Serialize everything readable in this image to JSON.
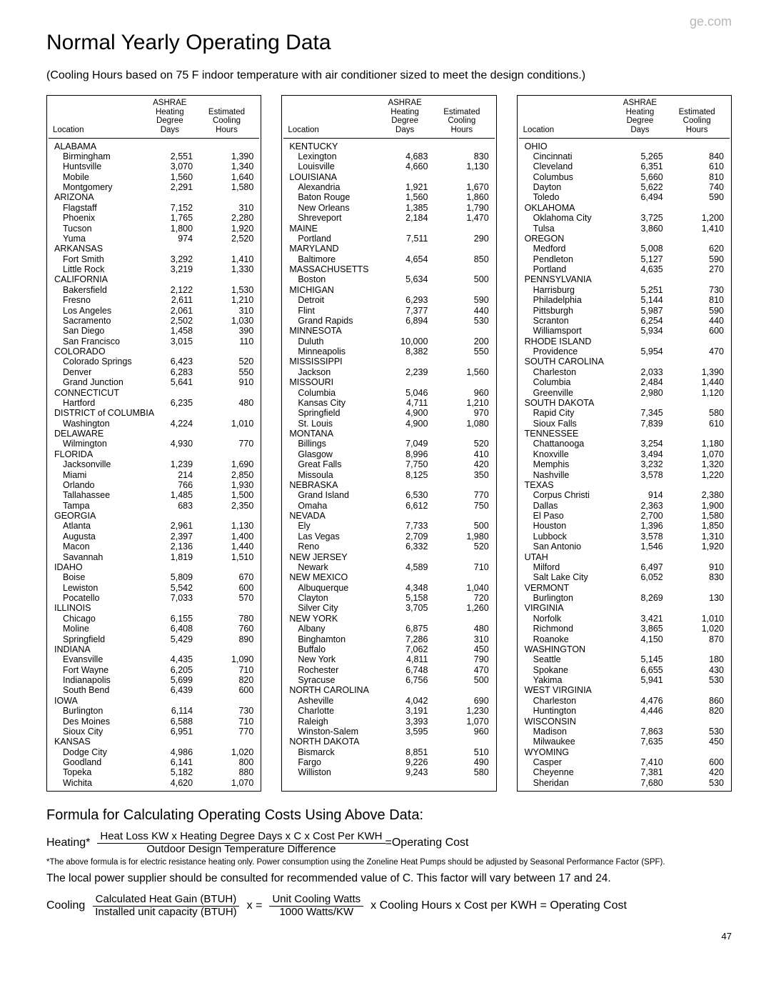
{
  "brand": "ge.com",
  "title": "Normal Yearly Operating Data",
  "subtitle": "(Cooling Hours based on 75 F indoor temperature with air conditioner sized to meet the design conditions.)",
  "headers": {
    "location": "Location",
    "hdd1": "ASHRAE",
    "hdd2": "Heating",
    "hdd3": "Degree",
    "hdd4": "Days",
    "ech1": "Estimated",
    "ech2": "Cooling",
    "ech3": "Hours"
  },
  "columns": [
    [
      {
        "t": "s",
        "n": "ALABAMA"
      },
      {
        "t": "r",
        "n": "Birmingham",
        "h": "2,551",
        "c": "1,390"
      },
      {
        "t": "r",
        "n": "Huntsville",
        "h": "3,070",
        "c": "1,340"
      },
      {
        "t": "r",
        "n": "Mobile",
        "h": "1,560",
        "c": "1,640"
      },
      {
        "t": "r",
        "n": "Montgomery",
        "h": "2,291",
        "c": "1,580"
      },
      {
        "t": "s",
        "n": "ARIZONA"
      },
      {
        "t": "r",
        "n": "Flagstaff",
        "h": "7,152",
        "c": "310"
      },
      {
        "t": "r",
        "n": "Phoenix",
        "h": "1,765",
        "c": "2,280"
      },
      {
        "t": "r",
        "n": "Tucson",
        "h": "1,800",
        "c": "1,920"
      },
      {
        "t": "r",
        "n": "Yuma",
        "h": "974",
        "c": "2,520"
      },
      {
        "t": "s",
        "n": "ARKANSAS"
      },
      {
        "t": "r",
        "n": "Fort Smith",
        "h": "3,292",
        "c": "1,410"
      },
      {
        "t": "r",
        "n": "Little Rock",
        "h": "3,219",
        "c": "1,330"
      },
      {
        "t": "s",
        "n": "CALIFORNIA"
      },
      {
        "t": "r",
        "n": "Bakersfield",
        "h": "2,122",
        "c": "1,530"
      },
      {
        "t": "r",
        "n": "Fresno",
        "h": "2,611",
        "c": "1,210"
      },
      {
        "t": "r",
        "n": "Los Angeles",
        "h": "2,061",
        "c": "310"
      },
      {
        "t": "r",
        "n": "Sacramento",
        "h": "2,502",
        "c": "1,030"
      },
      {
        "t": "r",
        "n": "San Diego",
        "h": "1,458",
        "c": "390"
      },
      {
        "t": "r",
        "n": "San Francisco",
        "h": "3,015",
        "c": "110"
      },
      {
        "t": "s",
        "n": "COLORADO"
      },
      {
        "t": "r",
        "n": "Colorado Springs",
        "h": "6,423",
        "c": "520"
      },
      {
        "t": "r",
        "n": "Denver",
        "h": "6,283",
        "c": "550"
      },
      {
        "t": "r",
        "n": "Grand Junction",
        "h": "5,641",
        "c": "910"
      },
      {
        "t": "s",
        "n": "CONNECTICUT"
      },
      {
        "t": "r",
        "n": "Hartford",
        "h": "6,235",
        "c": "480"
      },
      {
        "t": "s",
        "n": "DISTRICT of COLUMBIA"
      },
      {
        "t": "r",
        "n": "Washington",
        "h": "4,224",
        "c": "1,010"
      },
      {
        "t": "s",
        "n": "DELAWARE"
      },
      {
        "t": "r",
        "n": "Wilmington",
        "h": "4,930",
        "c": "770"
      },
      {
        "t": "s",
        "n": "FLORIDA"
      },
      {
        "t": "r",
        "n": "Jacksonville",
        "h": "1,239",
        "c": "1,690"
      },
      {
        "t": "r",
        "n": "Miami",
        "h": "214",
        "c": "2,850"
      },
      {
        "t": "r",
        "n": "Orlando",
        "h": "766",
        "c": "1,930"
      },
      {
        "t": "r",
        "n": "Tallahassee",
        "h": "1,485",
        "c": "1,500"
      },
      {
        "t": "r",
        "n": "Tampa",
        "h": "683",
        "c": "2,350"
      },
      {
        "t": "s",
        "n": "GEORGIA"
      },
      {
        "t": "r",
        "n": "Atlanta",
        "h": "2,961",
        "c": "1,130"
      },
      {
        "t": "r",
        "n": "Augusta",
        "h": "2,397",
        "c": "1,400"
      },
      {
        "t": "r",
        "n": "Macon",
        "h": "2,136",
        "c": "1,440"
      },
      {
        "t": "r",
        "n": "Savannah",
        "h": "1,819",
        "c": "1,510"
      },
      {
        "t": "s",
        "n": "IDAHO"
      },
      {
        "t": "r",
        "n": "Boise",
        "h": "5,809",
        "c": "670"
      },
      {
        "t": "r",
        "n": "Lewiston",
        "h": "5,542",
        "c": "600"
      },
      {
        "t": "r",
        "n": "Pocatello",
        "h": "7,033",
        "c": "570"
      },
      {
        "t": "s",
        "n": "ILLINOIS"
      },
      {
        "t": "r",
        "n": "Chicago",
        "h": "6,155",
        "c": "780"
      },
      {
        "t": "r",
        "n": "Moline",
        "h": "6,408",
        "c": "760"
      },
      {
        "t": "r",
        "n": "Springfield",
        "h": "5,429",
        "c": "890"
      },
      {
        "t": "s",
        "n": "INDIANA"
      },
      {
        "t": "r",
        "n": "Evansville",
        "h": "4,435",
        "c": "1,090"
      },
      {
        "t": "r",
        "n": "Fort Wayne",
        "h": "6,205",
        "c": "710"
      },
      {
        "t": "r",
        "n": "Indianapolis",
        "h": "5,699",
        "c": "820"
      },
      {
        "t": "r",
        "n": "South Bend",
        "h": "6,439",
        "c": "600"
      },
      {
        "t": "s",
        "n": "IOWA"
      },
      {
        "t": "r",
        "n": "Burlington",
        "h": "6,114",
        "c": "730"
      },
      {
        "t": "r",
        "n": "Des Moines",
        "h": "6,588",
        "c": "710"
      },
      {
        "t": "r",
        "n": "Sioux City",
        "h": "6,951",
        "c": "770"
      },
      {
        "t": "s",
        "n": "KANSAS"
      },
      {
        "t": "r",
        "n": "Dodge City",
        "h": "4,986",
        "c": "1,020"
      },
      {
        "t": "r",
        "n": "Goodland",
        "h": "6,141",
        "c": "800"
      },
      {
        "t": "r",
        "n": "Topeka",
        "h": "5,182",
        "c": "880"
      },
      {
        "t": "r",
        "n": "Wichita",
        "h": "4,620",
        "c": "1,070"
      }
    ],
    [
      {
        "t": "s",
        "n": "KENTUCKY"
      },
      {
        "t": "r",
        "n": "Lexington",
        "h": "4,683",
        "c": "830"
      },
      {
        "t": "r",
        "n": "Louisville",
        "h": "4,660",
        "c": "1,130"
      },
      {
        "t": "s",
        "n": "LOUISIANA"
      },
      {
        "t": "r",
        "n": "Alexandria",
        "h": "1,921",
        "c": "1,670"
      },
      {
        "t": "r",
        "n": "Baton Rouge",
        "h": "1,560",
        "c": "1,860"
      },
      {
        "t": "r",
        "n": "New Orleans",
        "h": "1,385",
        "c": "1,790"
      },
      {
        "t": "r",
        "n": "Shreveport",
        "h": "2,184",
        "c": "1,470"
      },
      {
        "t": "s",
        "n": "MAINE"
      },
      {
        "t": "r",
        "n": "Portland",
        "h": "7,511",
        "c": "290"
      },
      {
        "t": "s",
        "n": "MARYLAND"
      },
      {
        "t": "r",
        "n": "Baltimore",
        "h": "4,654",
        "c": "850"
      },
      {
        "t": "s",
        "n": "MASSACHUSETTS"
      },
      {
        "t": "r",
        "n": "Boston",
        "h": "5,634",
        "c": "500"
      },
      {
        "t": "s",
        "n": "MICHIGAN"
      },
      {
        "t": "r",
        "n": "Detroit",
        "h": "6,293",
        "c": "590"
      },
      {
        "t": "r",
        "n": "Flint",
        "h": "7,377",
        "c": "440"
      },
      {
        "t": "r",
        "n": "Grand Rapids",
        "h": "6,894",
        "c": "530"
      },
      {
        "t": "s",
        "n": "MINNESOTA"
      },
      {
        "t": "r",
        "n": "Duluth",
        "h": "10,000",
        "c": "200"
      },
      {
        "t": "r",
        "n": "Minneapolis",
        "h": "8,382",
        "c": "550"
      },
      {
        "t": "s",
        "n": "MISSISSIPPI"
      },
      {
        "t": "r",
        "n": "Jackson",
        "h": "2,239",
        "c": "1,560"
      },
      {
        "t": "s",
        "n": "MISSOURI"
      },
      {
        "t": "r",
        "n": "Columbia",
        "h": "5,046",
        "c": "960"
      },
      {
        "t": "r",
        "n": "Kansas City",
        "h": "4,711",
        "c": "1,210"
      },
      {
        "t": "r",
        "n": "Springfield",
        "h": "4,900",
        "c": "970"
      },
      {
        "t": "r",
        "n": "St. Louis",
        "h": "4,900",
        "c": "1,080"
      },
      {
        "t": "s",
        "n": "MONTANA"
      },
      {
        "t": "r",
        "n": "Billings",
        "h": "7,049",
        "c": "520"
      },
      {
        "t": "r",
        "n": "Glasgow",
        "h": "8,996",
        "c": "410"
      },
      {
        "t": "r",
        "n": "Great Falls",
        "h": "7,750",
        "c": "420"
      },
      {
        "t": "r",
        "n": "Missoula",
        "h": "8,125",
        "c": "350"
      },
      {
        "t": "s",
        "n": "NEBRASKA"
      },
      {
        "t": "r",
        "n": "Grand Island",
        "h": "6,530",
        "c": "770"
      },
      {
        "t": "r",
        "n": "Omaha",
        "h": "6,612",
        "c": "750"
      },
      {
        "t": "s",
        "n": "NEVADA"
      },
      {
        "t": "r",
        "n": "Ely",
        "h": "7,733",
        "c": "500"
      },
      {
        "t": "r",
        "n": "Las Vegas",
        "h": "2,709",
        "c": "1,980"
      },
      {
        "t": "r",
        "n": "Reno",
        "h": "6,332",
        "c": "520"
      },
      {
        "t": "s",
        "n": "NEW JERSEY"
      },
      {
        "t": "r",
        "n": "Newark",
        "h": "4,589",
        "c": "710"
      },
      {
        "t": "s",
        "n": "NEW MEXICO"
      },
      {
        "t": "r",
        "n": "Albuquerque",
        "h": "4,348",
        "c": "1,040"
      },
      {
        "t": "r",
        "n": "Clayton",
        "h": "5,158",
        "c": "720"
      },
      {
        "t": "r",
        "n": "Silver City",
        "h": "3,705",
        "c": "1,260"
      },
      {
        "t": "s",
        "n": "NEW YORK"
      },
      {
        "t": "r",
        "n": "Albany",
        "h": "6,875",
        "c": "480"
      },
      {
        "t": "r",
        "n": "Binghamton",
        "h": "7,286",
        "c": "310"
      },
      {
        "t": "r",
        "n": "Buffalo",
        "h": "7,062",
        "c": "450"
      },
      {
        "t": "r",
        "n": "New York",
        "h": "4,811",
        "c": "790"
      },
      {
        "t": "r",
        "n": "Rochester",
        "h": "6,748",
        "c": "470"
      },
      {
        "t": "r",
        "n": "Syracuse",
        "h": "6,756",
        "c": "500"
      },
      {
        "t": "s",
        "n": "NORTH CAROLINA"
      },
      {
        "t": "r",
        "n": "Asheville",
        "h": "4,042",
        "c": "690"
      },
      {
        "t": "r",
        "n": "Charlotte",
        "h": "3,191",
        "c": "1,230"
      },
      {
        "t": "r",
        "n": "Raleigh",
        "h": "3,393",
        "c": "1,070"
      },
      {
        "t": "r",
        "n": "Winston-Salem",
        "h": "3,595",
        "c": "960"
      },
      {
        "t": "s",
        "n": "NORTH DAKOTA"
      },
      {
        "t": "r",
        "n": "Bismarck",
        "h": "8,851",
        "c": "510"
      },
      {
        "t": "r",
        "n": "Fargo",
        "h": "9,226",
        "c": "490"
      },
      {
        "t": "r",
        "n": "Williston",
        "h": "9,243",
        "c": "580"
      }
    ],
    [
      {
        "t": "s",
        "n": "OHIO"
      },
      {
        "t": "r",
        "n": "Cincinnati",
        "h": "5,265",
        "c": "840"
      },
      {
        "t": "r",
        "n": "Cleveland",
        "h": "6,351",
        "c": "610"
      },
      {
        "t": "r",
        "n": "Columbus",
        "h": "5,660",
        "c": "810"
      },
      {
        "t": "r",
        "n": "Dayton",
        "h": "5,622",
        "c": "740"
      },
      {
        "t": "r",
        "n": "Toledo",
        "h": "6,494",
        "c": "590"
      },
      {
        "t": "s",
        "n": "OKLAHOMA"
      },
      {
        "t": "r",
        "n": "Oklahoma City",
        "h": "3,725",
        "c": "1,200"
      },
      {
        "t": "r",
        "n": "Tulsa",
        "h": "3,860",
        "c": "1,410"
      },
      {
        "t": "s",
        "n": "OREGON"
      },
      {
        "t": "r",
        "n": "Medford",
        "h": "5,008",
        "c": "620"
      },
      {
        "t": "r",
        "n": "Pendleton",
        "h": "5,127",
        "c": "590"
      },
      {
        "t": "r",
        "n": "Portland",
        "h": "4,635",
        "c": "270"
      },
      {
        "t": "s",
        "n": "PENNSYLVANIA"
      },
      {
        "t": "r",
        "n": "Harrisburg",
        "h": "5,251",
        "c": "730"
      },
      {
        "t": "r",
        "n": "Philadelphia",
        "h": "5,144",
        "c": "810"
      },
      {
        "t": "r",
        "n": "Pittsburgh",
        "h": "5,987",
        "c": "590"
      },
      {
        "t": "r",
        "n": "Scranton",
        "h": "6,254",
        "c": "440"
      },
      {
        "t": "r",
        "n": "Williamsport",
        "h": "5,934",
        "c": "600"
      },
      {
        "t": "s",
        "n": "RHODE ISLAND"
      },
      {
        "t": "r",
        "n": "Providence",
        "h": "5,954",
        "c": "470"
      },
      {
        "t": "s",
        "n": "SOUTH CAROLINA"
      },
      {
        "t": "r",
        "n": "Charleston",
        "h": "2,033",
        "c": "1,390"
      },
      {
        "t": "r",
        "n": "Columbia",
        "h": "2,484",
        "c": "1,440"
      },
      {
        "t": "r",
        "n": "Greenville",
        "h": "2,980",
        "c": "1,120"
      },
      {
        "t": "s",
        "n": "SOUTH DAKOTA"
      },
      {
        "t": "r",
        "n": "Rapid City",
        "h": "7,345",
        "c": "580"
      },
      {
        "t": "r",
        "n": "Sioux Falls",
        "h": "7,839",
        "c": "610"
      },
      {
        "t": "s",
        "n": "TENNESSEE"
      },
      {
        "t": "r",
        "n": "Chattanooga",
        "h": "3,254",
        "c": "1,180"
      },
      {
        "t": "r",
        "n": "Knoxville",
        "h": "3,494",
        "c": "1,070"
      },
      {
        "t": "r",
        "n": "Memphis",
        "h": "3,232",
        "c": "1,320"
      },
      {
        "t": "r",
        "n": "Nashville",
        "h": "3,578",
        "c": "1,220"
      },
      {
        "t": "s",
        "n": "TEXAS"
      },
      {
        "t": "r",
        "n": "Corpus Christi",
        "h": "914",
        "c": "2,380"
      },
      {
        "t": "r",
        "n": "Dallas",
        "h": "2,363",
        "c": "1,900"
      },
      {
        "t": "r",
        "n": "El Paso",
        "h": "2,700",
        "c": "1,580"
      },
      {
        "t": "r",
        "n": "Houston",
        "h": "1,396",
        "c": "1,850"
      },
      {
        "t": "r",
        "n": "Lubbock",
        "h": "3,578",
        "c": "1,310"
      },
      {
        "t": "r",
        "n": "San Antonio",
        "h": "1,546",
        "c": "1,920"
      },
      {
        "t": "s",
        "n": "UTAH"
      },
      {
        "t": "r",
        "n": "Milford",
        "h": "6,497",
        "c": "910"
      },
      {
        "t": "r",
        "n": "Salt Lake City",
        "h": "6,052",
        "c": "830"
      },
      {
        "t": "s",
        "n": "VERMONT"
      },
      {
        "t": "r",
        "n": "Burlington",
        "h": "8,269",
        "c": "130"
      },
      {
        "t": "s",
        "n": "VIRGINIA"
      },
      {
        "t": "r",
        "n": "Norfolk",
        "h": "3,421",
        "c": "1,010"
      },
      {
        "t": "r",
        "n": "Richmond",
        "h": "3,865",
        "c": "1,020"
      },
      {
        "t": "r",
        "n": "Roanoke",
        "h": "4,150",
        "c": "870"
      },
      {
        "t": "s",
        "n": "WASHINGTON"
      },
      {
        "t": "r",
        "n": "Seattle",
        "h": "5,145",
        "c": "180"
      },
      {
        "t": "r",
        "n": "Spokane",
        "h": "6,655",
        "c": "430"
      },
      {
        "t": "r",
        "n": "Yakima",
        "h": "5,941",
        "c": "530"
      },
      {
        "t": "s",
        "n": "WEST VIRGINIA"
      },
      {
        "t": "r",
        "n": "Charleston",
        "h": "4,476",
        "c": "860"
      },
      {
        "t": "r",
        "n": "Huntington",
        "h": "4,446",
        "c": "820"
      },
      {
        "t": "s",
        "n": "WISCONSIN"
      },
      {
        "t": "r",
        "n": "Madison",
        "h": "7,863",
        "c": "530"
      },
      {
        "t": "r",
        "n": "Milwaukee",
        "h": "7,635",
        "c": "450"
      },
      {
        "t": "s",
        "n": "WYOMING"
      },
      {
        "t": "r",
        "n": "Casper",
        "h": "7,410",
        "c": "600"
      },
      {
        "t": "r",
        "n": "Cheyenne",
        "h": "7,381",
        "c": "420"
      },
      {
        "t": "r",
        "n": "Sheridan",
        "h": "7,680",
        "c": "530"
      }
    ]
  ],
  "formula_title": "Formula for Calculating Operating Costs Using Above Data:",
  "heating_label": "Heating*",
  "heating_top": "Heat Loss KW x Heating Degree Days x  C  x Cost Per KWH",
  "heating_bot": "Outdoor Design Temperature Difference",
  "heating_eq": "=Operating Cost",
  "note": "*The above formula is for electric resistance heating only. Power consumption using the Zoneline Heat Pumps should be adjusted by Seasonal Performance Factor (SPF).",
  "note2": "The local power supplier should be consulted for recommended value of  C.  This factor will vary between 17 and 24.",
  "cooling_label": "Cooling",
  "cooling_f1_top": "Calculated Heat Gain (BTUH)",
  "cooling_f1_bot": "Installed unit capacity (BTUH)",
  "cooling_mid": "x =",
  "cooling_f2_top": "Unit Cooling Watts",
  "cooling_f2_bot": "1000 Watts/KW",
  "cooling_tail": "x  Cooling Hours  x  Cost per KWH  =  Operating Cost",
  "page": "47"
}
